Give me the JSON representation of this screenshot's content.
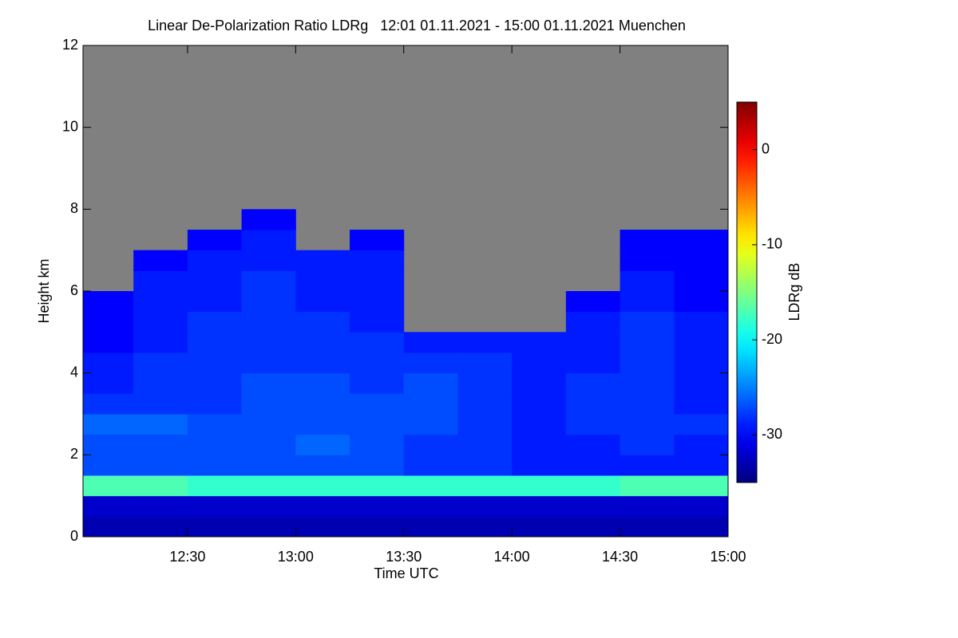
{
  "chart_data": {
    "type": "heatmap",
    "title": "Linear De-Polarization Ratio LDRg   12:01 01.11.2021 - 15:00 01.11.2021 Muenchen",
    "x_label": "Time UTC",
    "y_label": "Height km",
    "colorbar_label": "LDRg dB",
    "xlim": [
      12.0167,
      15
    ],
    "xticks": [
      {
        "value": 12.5,
        "label": "12:30"
      },
      {
        "value": 13,
        "label": "13:00"
      },
      {
        "value": 13.5,
        "label": "13:30"
      },
      {
        "value": 14,
        "label": "14:00"
      },
      {
        "value": 14.5,
        "label": "14:30"
      },
      {
        "value": 15,
        "label": "15:00"
      }
    ],
    "ylim": [
      0,
      12
    ],
    "yticks": [
      0,
      2,
      4,
      6,
      8,
      10,
      12
    ],
    "zlim": [
      -35,
      5
    ],
    "zticks": [
      -30,
      -20,
      -10,
      0
    ],
    "colormap": "jet",
    "x_edges": [
      12.0167,
      12.25,
      12.5,
      12.75,
      13,
      13.25,
      13.5,
      13.75,
      14,
      14.25,
      14.5,
      14.75,
      15
    ],
    "y_edges": [
      0,
      0.5,
      1,
      1.5,
      2,
      2.5,
      3,
      3.5,
      4,
      4.5,
      5,
      5.5,
      6,
      6.5,
      7,
      7.5,
      8
    ],
    "z": [
      [
        -33,
        -33,
        -33,
        -33,
        -33,
        -33,
        -33,
        -33,
        -33,
        -33,
        -33,
        -33
      ],
      [
        -32,
        -32,
        -32,
        -32,
        -32,
        -32,
        -32,
        -32,
        -32,
        -32,
        -32,
        -32
      ],
      [
        -17,
        -17,
        -18,
        -18,
        -18,
        -18,
        -18,
        -18,
        -18,
        -18,
        -17,
        -17
      ],
      [
        -27,
        -27,
        -27,
        -27,
        -27,
        -27,
        -28,
        -28,
        -29,
        -29,
        -29,
        -29
      ],
      [
        -27,
        -27,
        -27,
        -27,
        -26,
        -27,
        -28,
        -28,
        -29,
        -29,
        -28,
        -29
      ],
      [
        -26,
        -26,
        -27,
        -27,
        -27,
        -27,
        -27,
        -28,
        -29,
        -28,
        -28,
        -28
      ],
      [
        -28,
        -28,
        -28,
        -27,
        -27,
        -27,
        -27,
        -28,
        -29,
        -28,
        -28,
        -29
      ],
      [
        -29,
        -28,
        -28,
        -27,
        -27,
        -28,
        -27,
        -28,
        -29,
        -28,
        -28,
        -29
      ],
      [
        -29,
        -28,
        -28,
        -28,
        -28,
        -28,
        -28,
        -28,
        -29,
        -29,
        -28,
        -29
      ],
      [
        -30,
        -29,
        -28,
        -28,
        -28,
        -28,
        -29,
        -29,
        -29,
        -29,
        -28,
        -29
      ],
      [
        -30,
        -29,
        -28,
        -28,
        -28,
        -29,
        null,
        null,
        null,
        -29,
        -28,
        -29
      ],
      [
        -30,
        -29,
        -29,
        -28,
        -29,
        -29,
        null,
        null,
        null,
        -30,
        -29,
        -30
      ],
      [
        null,
        -29,
        -29,
        -28,
        -29,
        -29,
        null,
        null,
        null,
        null,
        -29,
        -30
      ],
      [
        null,
        -30,
        -29,
        -29,
        -29,
        -29,
        null,
        null,
        null,
        null,
        -30,
        -30
      ],
      [
        null,
        null,
        -30,
        -29,
        null,
        -30,
        null,
        null,
        null,
        null,
        -30,
        -30
      ],
      [
        null,
        null,
        null,
        -30,
        null,
        null,
        null,
        null,
        null,
        null,
        null,
        null
      ]
    ]
  }
}
